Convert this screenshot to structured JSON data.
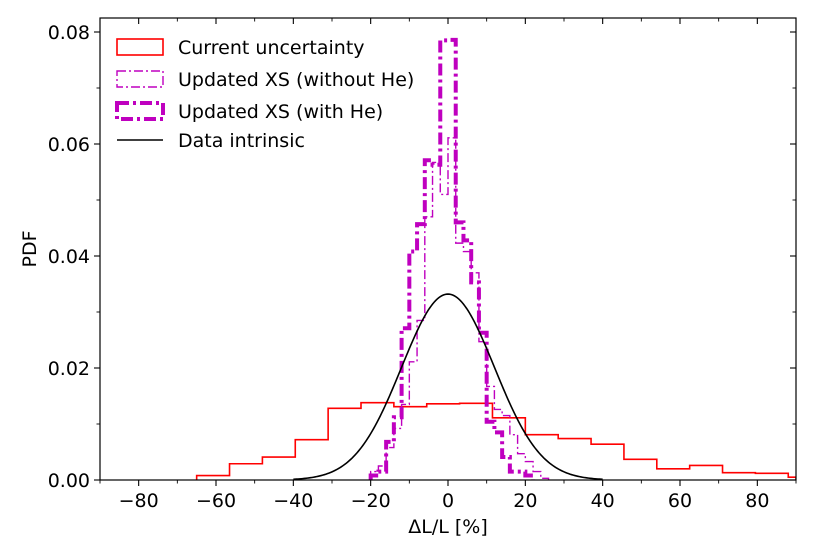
{
  "chart_data": {
    "type": "line",
    "xlabel": "ΔL/L [%]",
    "ylabel": "PDF",
    "xlim": [
      -90,
      90
    ],
    "ylim": [
      0,
      0.0825
    ],
    "x_ticks": [
      -80,
      -60,
      -40,
      -20,
      0,
      20,
      40,
      60,
      80
    ],
    "x_tick_labels": [
      "−80",
      "−60",
      "−40",
      "−20",
      "0",
      "20",
      "40",
      "60",
      "80"
    ],
    "y_ticks": [
      0.0,
      0.02,
      0.04,
      0.06,
      0.08
    ],
    "y_tick_labels": [
      "0.00",
      "0.02",
      "0.04",
      "0.06",
      "0.08"
    ],
    "grid": false,
    "legend_position": "top-left",
    "series": [
      {
        "name": "Current uncertainty",
        "kind": "step",
        "color": "#ff0000",
        "style": "solid",
        "edges": [
          -65,
          -56.5,
          -48,
          -39.5,
          -31,
          -22.5,
          -14,
          -5.5,
          3,
          11.5,
          20,
          28.5,
          37,
          45.5,
          54,
          62.5,
          71,
          79.5,
          88,
          90
        ],
        "values": [
          0.0008,
          0.0029,
          0.0041,
          0.0072,
          0.0128,
          0.0138,
          0.0131,
          0.0136,
          0.0137,
          0.0111,
          0.0081,
          0.0074,
          0.0064,
          0.0037,
          0.002,
          0.0026,
          0.0013,
          0.0012,
          0.0005
        ]
      },
      {
        "name": "Updated XS (without He)",
        "kind": "step",
        "color": "#bf00bf",
        "style": "dashdot-thin",
        "edges": [
          -20,
          -18,
          -16,
          -14,
          -12,
          -10,
          -8,
          -6,
          -4,
          -2,
          0,
          2,
          4,
          6,
          8,
          10,
          12,
          14,
          16,
          18,
          20,
          22,
          24,
          26
        ],
        "values": [
          0.0015,
          0.0025,
          0.0058,
          0.0092,
          0.0135,
          0.0211,
          0.0285,
          0.047,
          0.0567,
          0.051,
          0.0611,
          0.0423,
          0.0408,
          0.037,
          0.0247,
          0.0167,
          0.0126,
          0.0115,
          0.0081,
          0.0047,
          0.0033,
          0.0015,
          0.0003
        ]
      },
      {
        "name": "Updated XS (with He)",
        "kind": "step",
        "color": "#bf00bf",
        "style": "dashdot-thick",
        "edges": [
          -20,
          -18,
          -16,
          -14,
          -12,
          -10,
          -8,
          -6,
          -4,
          -2,
          0,
          2,
          4,
          6,
          8,
          10,
          12,
          14,
          16,
          18,
          20,
          22
        ],
        "values": [
          0.0008,
          0.0015,
          0.0068,
          0.0112,
          0.0271,
          0.0408,
          0.0457,
          0.0571,
          0.0563,
          0.0785,
          0.0786,
          0.046,
          0.0428,
          0.0353,
          0.0263,
          0.0104,
          0.0085,
          0.0041,
          0.0015,
          0.0015,
          0.0008
        ]
      },
      {
        "name": "Data intrinsic",
        "kind": "curve",
        "color": "#000000",
        "style": "solid",
        "function": "gaussian",
        "mean": 0,
        "sigma": 12,
        "amplitude": 0.0332,
        "x_range": [
          -40,
          40
        ]
      }
    ]
  }
}
